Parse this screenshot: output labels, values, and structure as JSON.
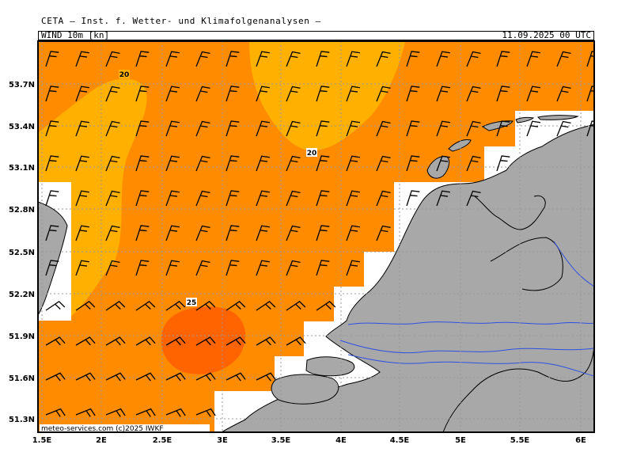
{
  "header": {
    "title": "CETA — Inst. f. Wetter- und Klimafolgenanalysen —",
    "field_label": "WIND 10m [kn]",
    "datetime": "11.09.2025 00 UTC"
  },
  "map": {
    "lat_labels": [
      "53.7N",
      "53.4N",
      "53.1N",
      "52.8N",
      "52.5N",
      "52.2N",
      "51.9N",
      "51.6N",
      "51.3N"
    ],
    "lon_labels": [
      "1.5E",
      "2E",
      "2.5E",
      "3E",
      "3.5E",
      "4E",
      "4.5E",
      "5E",
      "5.5E",
      "6E"
    ],
    "contour_labels": [
      "20",
      "20",
      "25"
    ],
    "credit": "meteo-services.com  (c)2025 IWKF",
    "colors": {
      "wind_15_20": "#ff8c00",
      "wind_20_25": "#ffb000",
      "wind_25_30": "#ff6400",
      "land": "#a8a8a8",
      "rivers": "#3050e0",
      "grid": "#999999",
      "barbs": "#000000"
    }
  }
}
